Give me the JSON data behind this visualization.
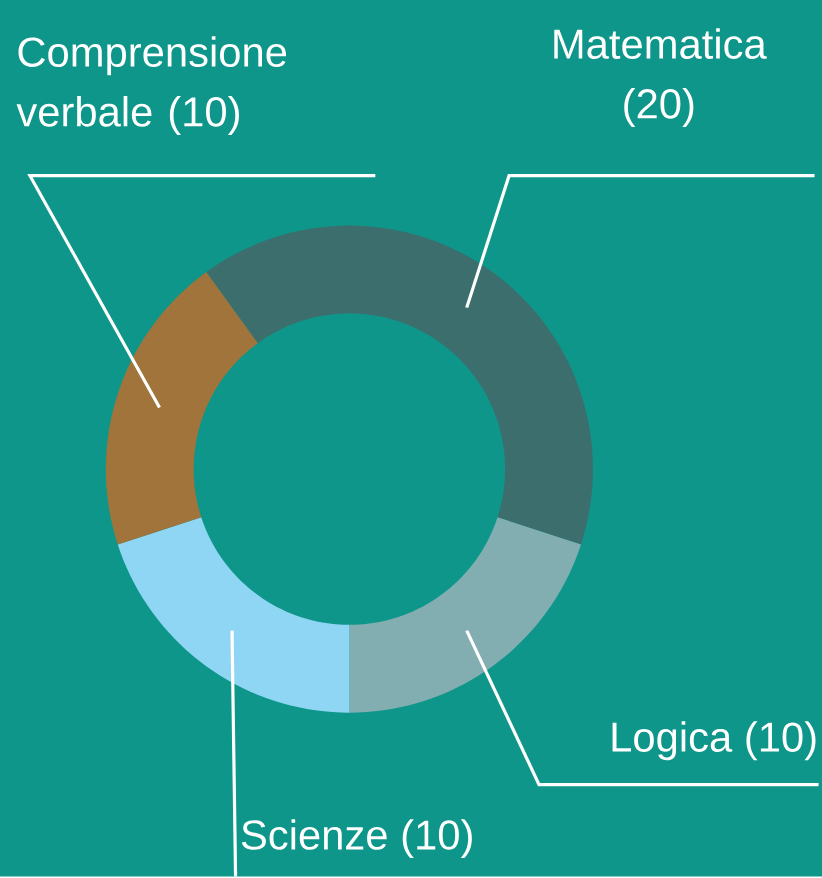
{
  "chart_data": {
    "type": "donut",
    "categories": [
      "Matematica",
      "Logica",
      "Scienze",
      "Comprensione verbale"
    ],
    "values": [
      20,
      10,
      10,
      10
    ],
    "colors": [
      "#3d6e6e",
      "#82aeb1",
      "#8fd6f5",
      "#a0743a"
    ],
    "value_labels": [
      "(20)",
      "(10)",
      "(10)",
      "(10)"
    ]
  }
}
